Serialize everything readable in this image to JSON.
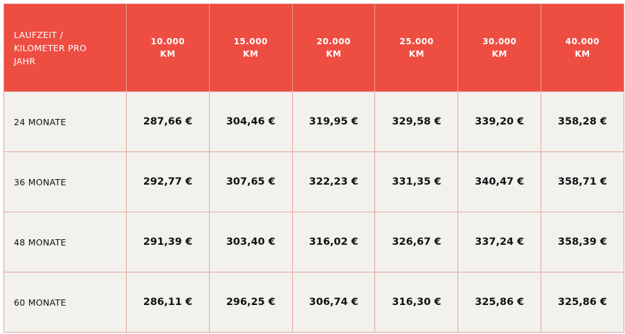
{
  "table": {
    "header": [
      "LAUFZEIT / KILOMETER PRO JAHR",
      "10.000 KM",
      "15.000 KM",
      "20.000 KM",
      "25.000 KM",
      "30.000 KM",
      "40.000 KM"
    ],
    "rows": [
      [
        "24 MONATE",
        "287,66 €",
        "304,46 €",
        "319,95 €",
        "329,58 €",
        "339,20 €",
        "358,28 €"
      ],
      [
        "36 MONATE",
        "292,77 €",
        "307,65 €",
        "322,23 €",
        "331,35 €",
        "340,47 €",
        "358,71 €"
      ],
      [
        "48 MONATE",
        "291,39 €",
        "303,40 €",
        "316,02 €",
        "326,67 €",
        "337,24 €",
        "358,39 €"
      ],
      [
        "60 MONATE",
        "286,11 €",
        "296,25 €",
        "306,74 €",
        "316,30 €",
        "325,86 €",
        "325,86 €"
      ]
    ]
  }
}
